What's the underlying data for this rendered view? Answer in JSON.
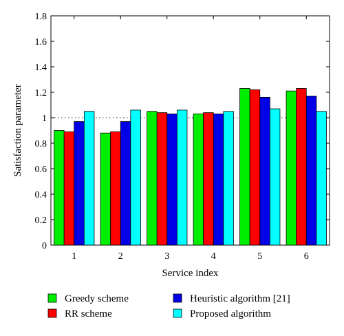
{
  "chart_data": {
    "type": "bar",
    "xlabel": "Service index",
    "ylabel": "Satisfaction parameter",
    "categories": [
      "1",
      "2",
      "3",
      "4",
      "5",
      "6"
    ],
    "ylim": [
      0,
      1.8
    ],
    "yticks": [
      "0",
      "0.2",
      "0.4",
      "0.6",
      "0.8",
      "1",
      "1.2",
      "1.4",
      "1.6",
      "1.8"
    ],
    "reference_line": 1,
    "series": [
      {
        "name": "Greedy scheme",
        "color": "#00ee00",
        "values": [
          0.9,
          0.88,
          1.05,
          1.03,
          1.23,
          1.21
        ]
      },
      {
        "name": "RR scheme",
        "color": "#ff0000",
        "values": [
          0.89,
          0.89,
          1.04,
          1.04,
          1.22,
          1.23
        ]
      },
      {
        "name": "Heuristic algorithm [21]",
        "color": "#0000e6",
        "values": [
          0.97,
          0.97,
          1.03,
          1.03,
          1.16,
          1.17
        ]
      },
      {
        "name": "Proposed algorithm",
        "color": "#00ffff",
        "values": [
          1.05,
          1.06,
          1.06,
          1.05,
          1.07,
          1.05
        ]
      }
    ],
    "legend": "below-chart"
  }
}
